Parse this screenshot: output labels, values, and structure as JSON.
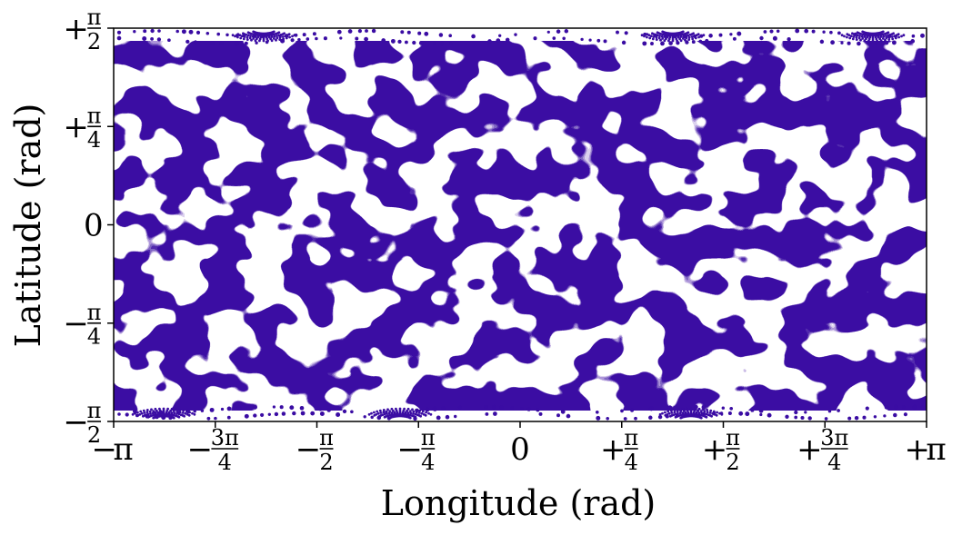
{
  "chart_data": {
    "type": "scatter",
    "title": "",
    "xlabel": "Longitude (rad)",
    "ylabel": "Latitude (rad)",
    "xlim": [
      -3.14159,
      3.14159
    ],
    "ylim": [
      -1.5708,
      1.5708
    ],
    "grid": false,
    "legend": "none",
    "marker_color": "#3a0ca3",
    "x_ticks": [
      {
        "value": -3.14159,
        "sign": "−",
        "num": "",
        "sym": "π",
        "den": ""
      },
      {
        "value": -2.35619,
        "sign": "−",
        "num": "3π",
        "sym": "",
        "den": "4"
      },
      {
        "value": -1.5708,
        "sign": "−",
        "num": "π",
        "sym": "",
        "den": "2"
      },
      {
        "value": -0.7854,
        "sign": "−",
        "num": "π",
        "sym": "",
        "den": "4"
      },
      {
        "value": 0,
        "sign": "",
        "num": "",
        "sym": "0",
        "den": ""
      },
      {
        "value": 0.7854,
        "sign": "+",
        "num": "π",
        "sym": "",
        "den": "4"
      },
      {
        "value": 1.5708,
        "sign": "+",
        "num": "π",
        "sym": "",
        "den": "2"
      },
      {
        "value": 2.35619,
        "sign": "+",
        "num": "3π",
        "sym": "",
        "den": "4"
      },
      {
        "value": 3.14159,
        "sign": "+",
        "num": "",
        "sym": "π",
        "den": ""
      }
    ],
    "y_ticks": [
      {
        "value": 1.5708,
        "sign": "+",
        "num": "π",
        "sym": "",
        "den": "2"
      },
      {
        "value": 0.7854,
        "sign": "+",
        "num": "π",
        "sym": "",
        "den": "4"
      },
      {
        "value": 0,
        "sign": "",
        "num": "",
        "sym": "0",
        "den": ""
      },
      {
        "value": -0.7854,
        "sign": "−",
        "num": "π",
        "sym": "",
        "den": "4"
      },
      {
        "value": -1.5708,
        "sign": "−",
        "num": "π",
        "sym": "",
        "den": "2"
      }
    ],
    "pattern": "labyrinth-like maze pattern of dense points covering the sphere; sparse arc-shaped rows of points near both poles"
  }
}
